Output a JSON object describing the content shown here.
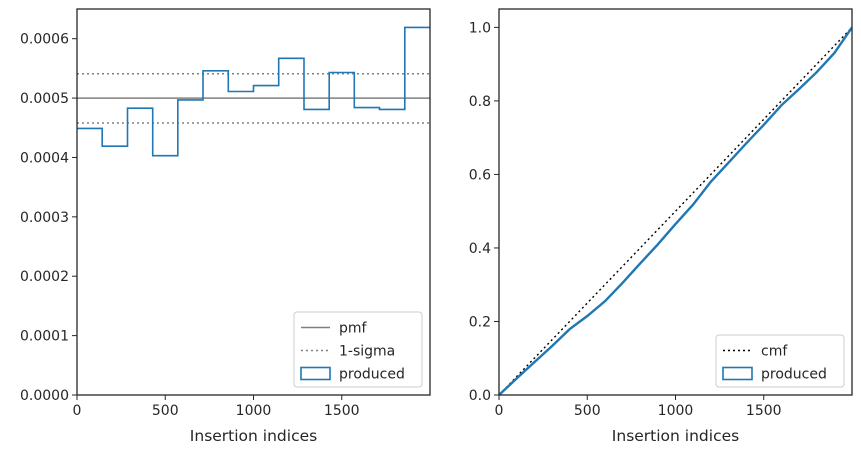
{
  "chart_data": [
    {
      "type": "line",
      "subtype": "histogram-step",
      "xlabel": "Insertion indices",
      "ylabel": "",
      "xlim": [
        0,
        2000
      ],
      "ylim": [
        0,
        0.00065
      ],
      "x_ticks": [
        0,
        500,
        1000,
        1500
      ],
      "x_tick_labels": [
        "0",
        "500",
        "1000",
        "1500"
      ],
      "y_ticks": [
        0,
        0.0001,
        0.0002,
        0.0003,
        0.0004,
        0.0005,
        0.0006
      ],
      "y_tick_labels": [
        "0.0000",
        "0.0001",
        "0.0002",
        "0.0003",
        "0.0004",
        "0.0005",
        "0.0006"
      ],
      "grid": false,
      "legend_position": "lower right",
      "reference_lines": [
        {
          "name": "pmf",
          "y": 0.0005,
          "style": "solid",
          "color": "#808080"
        },
        {
          "name": "1-sigma",
          "y": 0.000541,
          "style": "dotted",
          "color": "#808080"
        },
        {
          "name": "1-sigma",
          "y": 0.000458,
          "style": "dotted",
          "color": "#808080"
        }
      ],
      "series": [
        {
          "name": "produced",
          "color": "#1f77b4",
          "bin_edges": [
            0,
            143,
            286,
            429,
            571,
            714,
            857,
            1000,
            1143,
            1286,
            1429,
            1571,
            1714,
            1857,
            2000
          ],
          "values": [
            0.000449,
            0.000419,
            0.000483,
            0.000403,
            0.000497,
            0.000546,
            0.000511,
            0.000521,
            0.000567,
            0.000481,
            0.000543,
            0.000484,
            0.000481,
            0.000619
          ]
        }
      ],
      "legend": [
        "pmf",
        "1-sigma",
        "produced"
      ]
    },
    {
      "type": "line",
      "xlabel": "Insertion indices",
      "ylabel": "",
      "xlim": [
        0,
        2000
      ],
      "ylim": [
        0,
        1.05
      ],
      "x_ticks": [
        0,
        500,
        1000,
        1500
      ],
      "x_tick_labels": [
        "0",
        "500",
        "1000",
        "1500"
      ],
      "y_ticks": [
        0,
        0.2,
        0.4,
        0.6,
        0.8,
        1.0
      ],
      "y_tick_labels": [
        "0.0",
        "0.2",
        "0.4",
        "0.6",
        "0.8",
        "1.0"
      ],
      "grid": false,
      "legend_position": "lower right",
      "series": [
        {
          "name": "cmf",
          "style": "dotted",
          "color": "#000000",
          "x": [
            0,
            2000
          ],
          "y": [
            0,
            1.0
          ]
        },
        {
          "name": "produced",
          "style": "solid",
          "color": "#1f77b4",
          "x": [
            0,
            100,
            200,
            300,
            400,
            500,
            600,
            700,
            800,
            900,
            1000,
            1100,
            1200,
            1300,
            1400,
            1500,
            1600,
            1700,
            1800,
            1900,
            2000
          ],
          "y": [
            0,
            0.045,
            0.089,
            0.133,
            0.179,
            0.215,
            0.255,
            0.305,
            0.358,
            0.41,
            0.465,
            0.518,
            0.58,
            0.632,
            0.684,
            0.735,
            0.788,
            0.832,
            0.878,
            0.93,
            1.0
          ]
        }
      ],
      "legend": [
        "cmf",
        "produced"
      ]
    }
  ]
}
